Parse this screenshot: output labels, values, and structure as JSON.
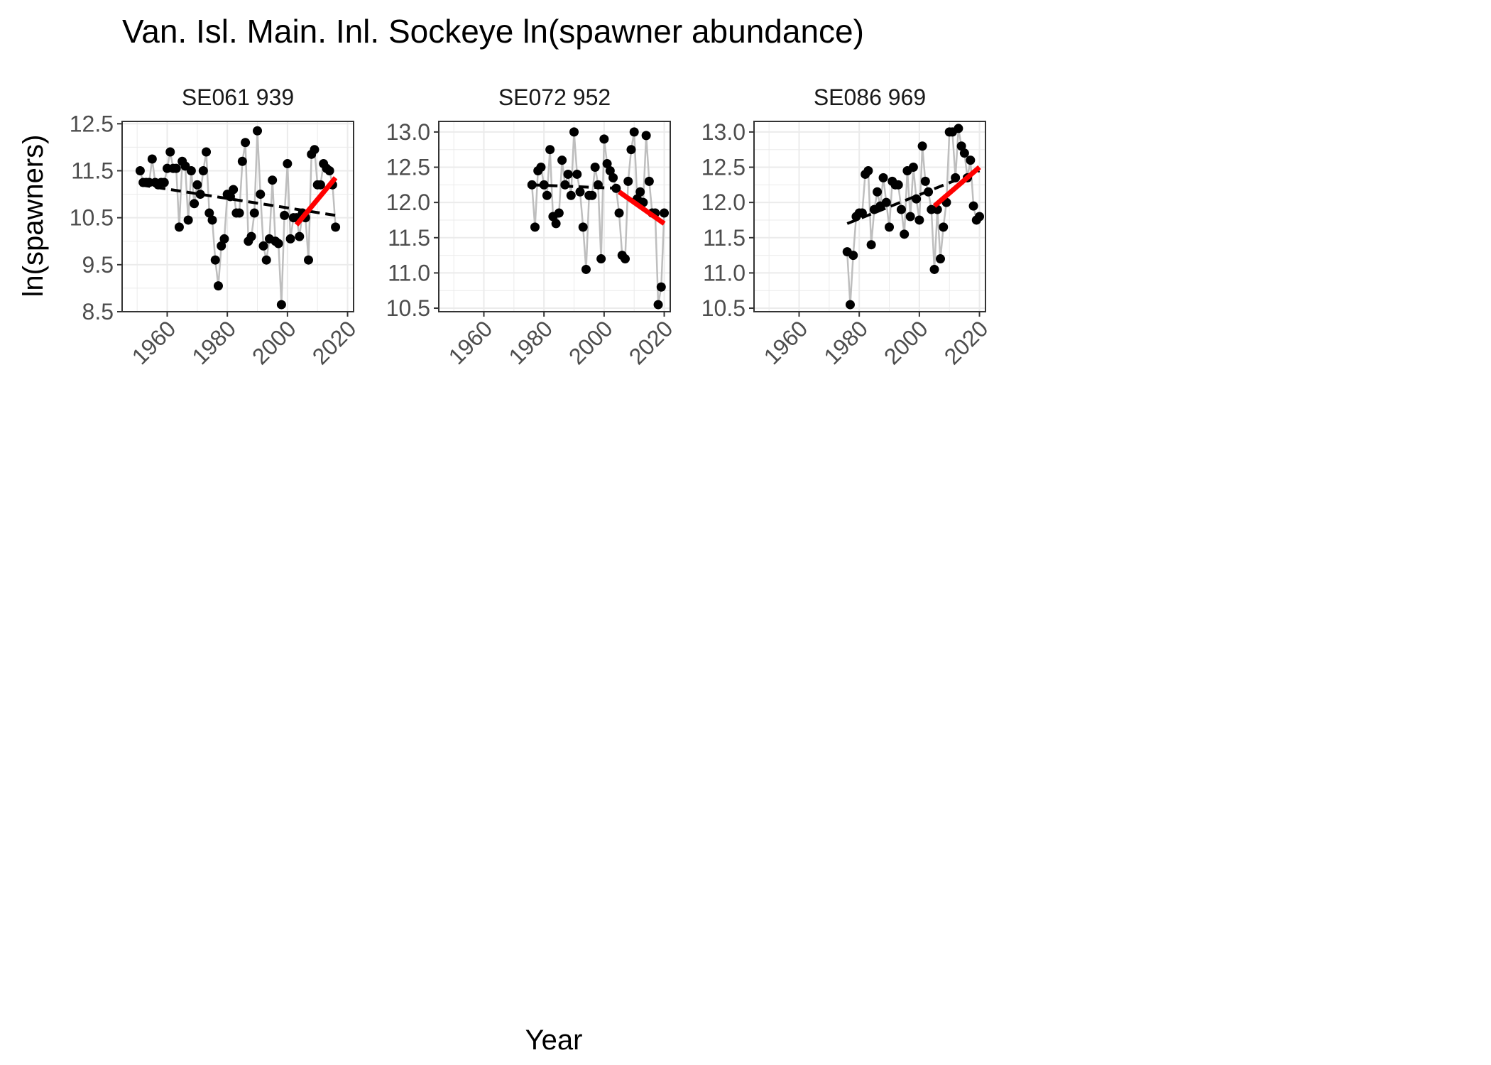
{
  "chart_data": {
    "type": "line",
    "title": "Van. Isl. Main. Inl. Sockeye ln(spawner abundance)",
    "xlabel": "Year",
    "ylabel": "ln(spawners)",
    "xlim": [
      1945,
      2022
    ],
    "x_ticks": [
      "1960",
      "1980",
      "2000",
      "2020"
    ],
    "grid": true,
    "colors": {
      "points": "#000000",
      "connecting_line": "#bebebe",
      "long_term_trend": "#000000",
      "recent_trend": "#ff0000",
      "grid_major": "#ebebeb",
      "panel_border": "#333333"
    },
    "panels": [
      {
        "strip_label": "SE061 939",
        "ylim": [
          8.5,
          12.55
        ],
        "y_ticks": [
          "8.5",
          "9.5",
          "10.5",
          "11.5",
          "12.5"
        ],
        "x": [
          1951,
          1952,
          1953,
          1954,
          1955,
          1956,
          1957,
          1958,
          1959,
          1960,
          1961,
          1962,
          1963,
          1964,
          1965,
          1966,
          1967,
          1968,
          1969,
          1970,
          1971,
          1972,
          1973,
          1974,
          1975,
          1976,
          1977,
          1978,
          1979,
          1980,
          1981,
          1982,
          1983,
          1984,
          1985,
          1986,
          1987,
          1988,
          1989,
          1990,
          1991,
          1992,
          1993,
          1994,
          1995,
          1996,
          1997,
          1998,
          1999,
          2000,
          2001,
          2002,
          2003,
          2004,
          2005,
          2006,
          2007,
          2008,
          2009,
          2010,
          2011,
          2012,
          2013,
          2014,
          2015,
          2016
        ],
        "y": [
          11.5,
          11.25,
          11.25,
          11.25,
          11.75,
          11.25,
          11.2,
          11.25,
          11.25,
          11.55,
          11.9,
          11.55,
          11.55,
          10.3,
          11.7,
          11.6,
          10.45,
          11.5,
          10.8,
          11.2,
          11.0,
          11.5,
          11.9,
          10.6,
          10.45,
          9.6,
          9.05,
          9.9,
          10.05,
          11.0,
          10.95,
          11.1,
          10.6,
          10.6,
          11.7,
          12.1,
          10.0,
          10.1,
          10.6,
          12.35,
          11.0,
          9.9,
          9.6,
          10.05,
          11.3,
          10.0,
          9.95,
          8.65,
          10.55,
          11.65,
          10.05,
          10.5,
          10.5,
          10.1,
          10.6,
          10.5,
          9.6,
          11.85,
          11.95,
          11.2,
          11.2,
          11.65,
          11.55,
          11.5,
          11.2,
          10.3
        ],
        "long_term_trend": {
          "x": [
            1951,
            2016
          ],
          "y": [
            11.2,
            10.55
          ]
        },
        "recent_trend": {
          "x": [
            2003,
            2016
          ],
          "y": [
            10.35,
            11.35
          ]
        }
      },
      {
        "strip_label": "SE072 952",
        "ylim": [
          10.45,
          13.15
        ],
        "y_ticks": [
          "10.5",
          "11.0",
          "11.5",
          "12.0",
          "12.5",
          "13.0"
        ],
        "x": [
          1976,
          1977,
          1978,
          1979,
          1980,
          1981,
          1982,
          1983,
          1984,
          1985,
          1986,
          1987,
          1988,
          1989,
          1990,
          1991,
          1992,
          1993,
          1994,
          1995,
          1996,
          1997,
          1998,
          1999,
          2000,
          2001,
          2002,
          2003,
          2004,
          2005,
          2006,
          2007,
          2008,
          2009,
          2010,
          2011,
          2012,
          2013,
          2014,
          2015,
          2016,
          2017,
          2018,
          2019,
          2020
        ],
        "y": [
          12.25,
          11.65,
          12.45,
          12.5,
          12.25,
          12.1,
          12.75,
          11.8,
          11.7,
          11.85,
          12.6,
          12.25,
          12.4,
          12.1,
          13.0,
          12.4,
          12.15,
          11.65,
          11.05,
          12.1,
          12.1,
          12.5,
          12.25,
          11.2,
          12.9,
          12.55,
          12.45,
          12.35,
          12.2,
          11.85,
          11.25,
          11.2,
          12.3,
          12.75,
          13.0,
          12.05,
          12.15,
          12.0,
          12.95,
          12.3,
          11.85,
          11.85,
          10.55,
          10.8,
          11.85
        ],
        "long_term_trend": {
          "x": [
            1976,
            2005
          ],
          "y": [
            12.25,
            12.2
          ]
        },
        "recent_trend": {
          "x": [
            2005,
            2020
          ],
          "y": [
            12.15,
            11.7
          ]
        }
      },
      {
        "strip_label": "SE086 969",
        "ylim": [
          10.45,
          13.15
        ],
        "y_ticks": [
          "10.5",
          "11.0",
          "11.5",
          "12.0",
          "12.5",
          "13.0"
        ],
        "x": [
          1976,
          1977,
          1978,
          1979,
          1980,
          1981,
          1982,
          1983,
          1984,
          1985,
          1986,
          1987,
          1988,
          1989,
          1990,
          1991,
          1992,
          1993,
          1994,
          1995,
          1996,
          1997,
          1998,
          1999,
          2000,
          2001,
          2002,
          2003,
          2004,
          2005,
          2006,
          2007,
          2008,
          2009,
          2010,
          2011,
          2012,
          2013,
          2014,
          2015,
          2016,
          2017,
          2018,
          2019,
          2020
        ],
        "y": [
          11.3,
          10.55,
          11.25,
          11.8,
          11.85,
          11.85,
          12.4,
          12.45,
          11.4,
          11.9,
          12.15,
          11.95,
          12.35,
          12.0,
          11.65,
          12.3,
          12.25,
          12.25,
          11.9,
          11.55,
          12.45,
          11.8,
          12.5,
          12.05,
          11.75,
          12.8,
          12.3,
          12.15,
          11.9,
          11.05,
          11.9,
          11.2,
          11.65,
          12.0,
          13.0,
          13.0,
          12.35,
          13.05,
          12.8,
          12.7,
          12.35,
          12.6,
          11.95,
          11.75,
          11.8
        ],
        "long_term_trend": {
          "x": [
            1976,
            2020
          ],
          "y": [
            11.7,
            12.45
          ]
        },
        "recent_trend": {
          "x": [
            2005,
            2020
          ],
          "y": [
            11.95,
            12.5
          ]
        }
      }
    ]
  }
}
